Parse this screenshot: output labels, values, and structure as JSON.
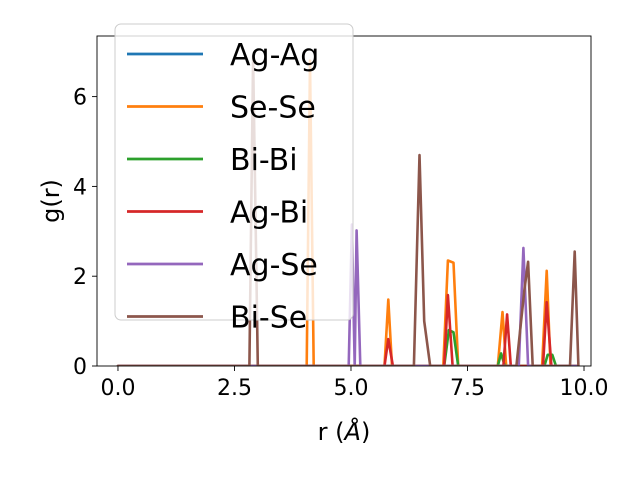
{
  "chart_data": {
    "type": "line",
    "xlabel": "r (",
    "xlabel_unit": "Å",
    "xlabel_close": ")",
    "ylabel": "g(r)",
    "xlim": [
      -0.45,
      10.15
    ],
    "ylim": [
      0,
      7.35
    ],
    "xticks": [
      {
        "value": 0.0,
        "label": "0.0"
      },
      {
        "value": 2.5,
        "label": "2.5"
      },
      {
        "value": 5.0,
        "label": "5.0"
      },
      {
        "value": 7.5,
        "label": "7.5"
      },
      {
        "value": 10.0,
        "label": "10.0"
      }
    ],
    "yticks": [
      {
        "value": 0,
        "label": "0"
      },
      {
        "value": 2,
        "label": "2"
      },
      {
        "value": 4,
        "label": "4"
      },
      {
        "value": 6,
        "label": "6"
      }
    ],
    "legend_position": "top-left",
    "series": [
      {
        "name": "Ag-Ag",
        "color": "#1f77b4",
        "points": [
          [
            0,
            0
          ],
          [
            9.85,
            0
          ]
        ]
      },
      {
        "name": "Se-Se",
        "color": "#ff7f0e",
        "points": [
          [
            0,
            0
          ],
          [
            4.05,
            0
          ],
          [
            4.12,
            6.8
          ],
          [
            4.2,
            0
          ],
          [
            5.72,
            0
          ],
          [
            5.8,
            1.48
          ],
          [
            5.88,
            0
          ],
          [
            6.98,
            0
          ],
          [
            7.08,
            2.35
          ],
          [
            7.2,
            2.3
          ],
          [
            7.3,
            0
          ],
          [
            8.15,
            0
          ],
          [
            8.25,
            1.2
          ],
          [
            8.33,
            0
          ],
          [
            9.1,
            0
          ],
          [
            9.2,
            2.12
          ],
          [
            9.28,
            0
          ],
          [
            9.85,
            0
          ]
        ]
      },
      {
        "name": "Bi-Bi",
        "color": "#2ca02c",
        "points": [
          [
            0,
            0
          ],
          [
            7.0,
            0
          ],
          [
            7.1,
            0.8
          ],
          [
            7.2,
            0.75
          ],
          [
            7.3,
            0
          ],
          [
            8.15,
            0
          ],
          [
            8.22,
            0.28
          ],
          [
            8.3,
            0
          ],
          [
            9.15,
            0
          ],
          [
            9.22,
            0.25
          ],
          [
            9.32,
            0.25
          ],
          [
            9.4,
            0
          ],
          [
            9.85,
            0
          ]
        ]
      },
      {
        "name": "Ag-Bi",
        "color": "#d62728",
        "points": [
          [
            0,
            0
          ],
          [
            5.72,
            0
          ],
          [
            5.8,
            0.6
          ],
          [
            5.9,
            0
          ],
          [
            7.0,
            0
          ],
          [
            7.08,
            1.58
          ],
          [
            7.18,
            0
          ],
          [
            8.27,
            0
          ],
          [
            8.35,
            1.15
          ],
          [
            8.43,
            0
          ],
          [
            9.12,
            0
          ],
          [
            9.2,
            1.42
          ],
          [
            9.3,
            0
          ],
          [
            9.85,
            0
          ]
        ]
      },
      {
        "name": "Ag-Se",
        "color": "#9467bd",
        "points": [
          [
            0,
            0
          ],
          [
            4.95,
            0
          ],
          [
            5.02,
            3.15
          ],
          [
            5.08,
            0
          ],
          [
            5.12,
            3.02
          ],
          [
            5.2,
            0
          ],
          [
            8.6,
            0
          ],
          [
            8.7,
            2.63
          ],
          [
            8.8,
            0
          ],
          [
            9.85,
            0
          ]
        ]
      },
      {
        "name": "Bi-Se",
        "color": "#8c564b",
        "points": [
          [
            0,
            0
          ],
          [
            2.82,
            0
          ],
          [
            2.9,
            6.9
          ],
          [
            3.0,
            0
          ],
          [
            6.35,
            0
          ],
          [
            6.47,
            4.7
          ],
          [
            6.57,
            1.0
          ],
          [
            6.7,
            0
          ],
          [
            8.55,
            0
          ],
          [
            8.72,
            1.7
          ],
          [
            8.8,
            2.32
          ],
          [
            8.9,
            0
          ],
          [
            9.7,
            0
          ],
          [
            9.8,
            2.55
          ],
          [
            9.88,
            0
          ]
        ]
      }
    ]
  }
}
